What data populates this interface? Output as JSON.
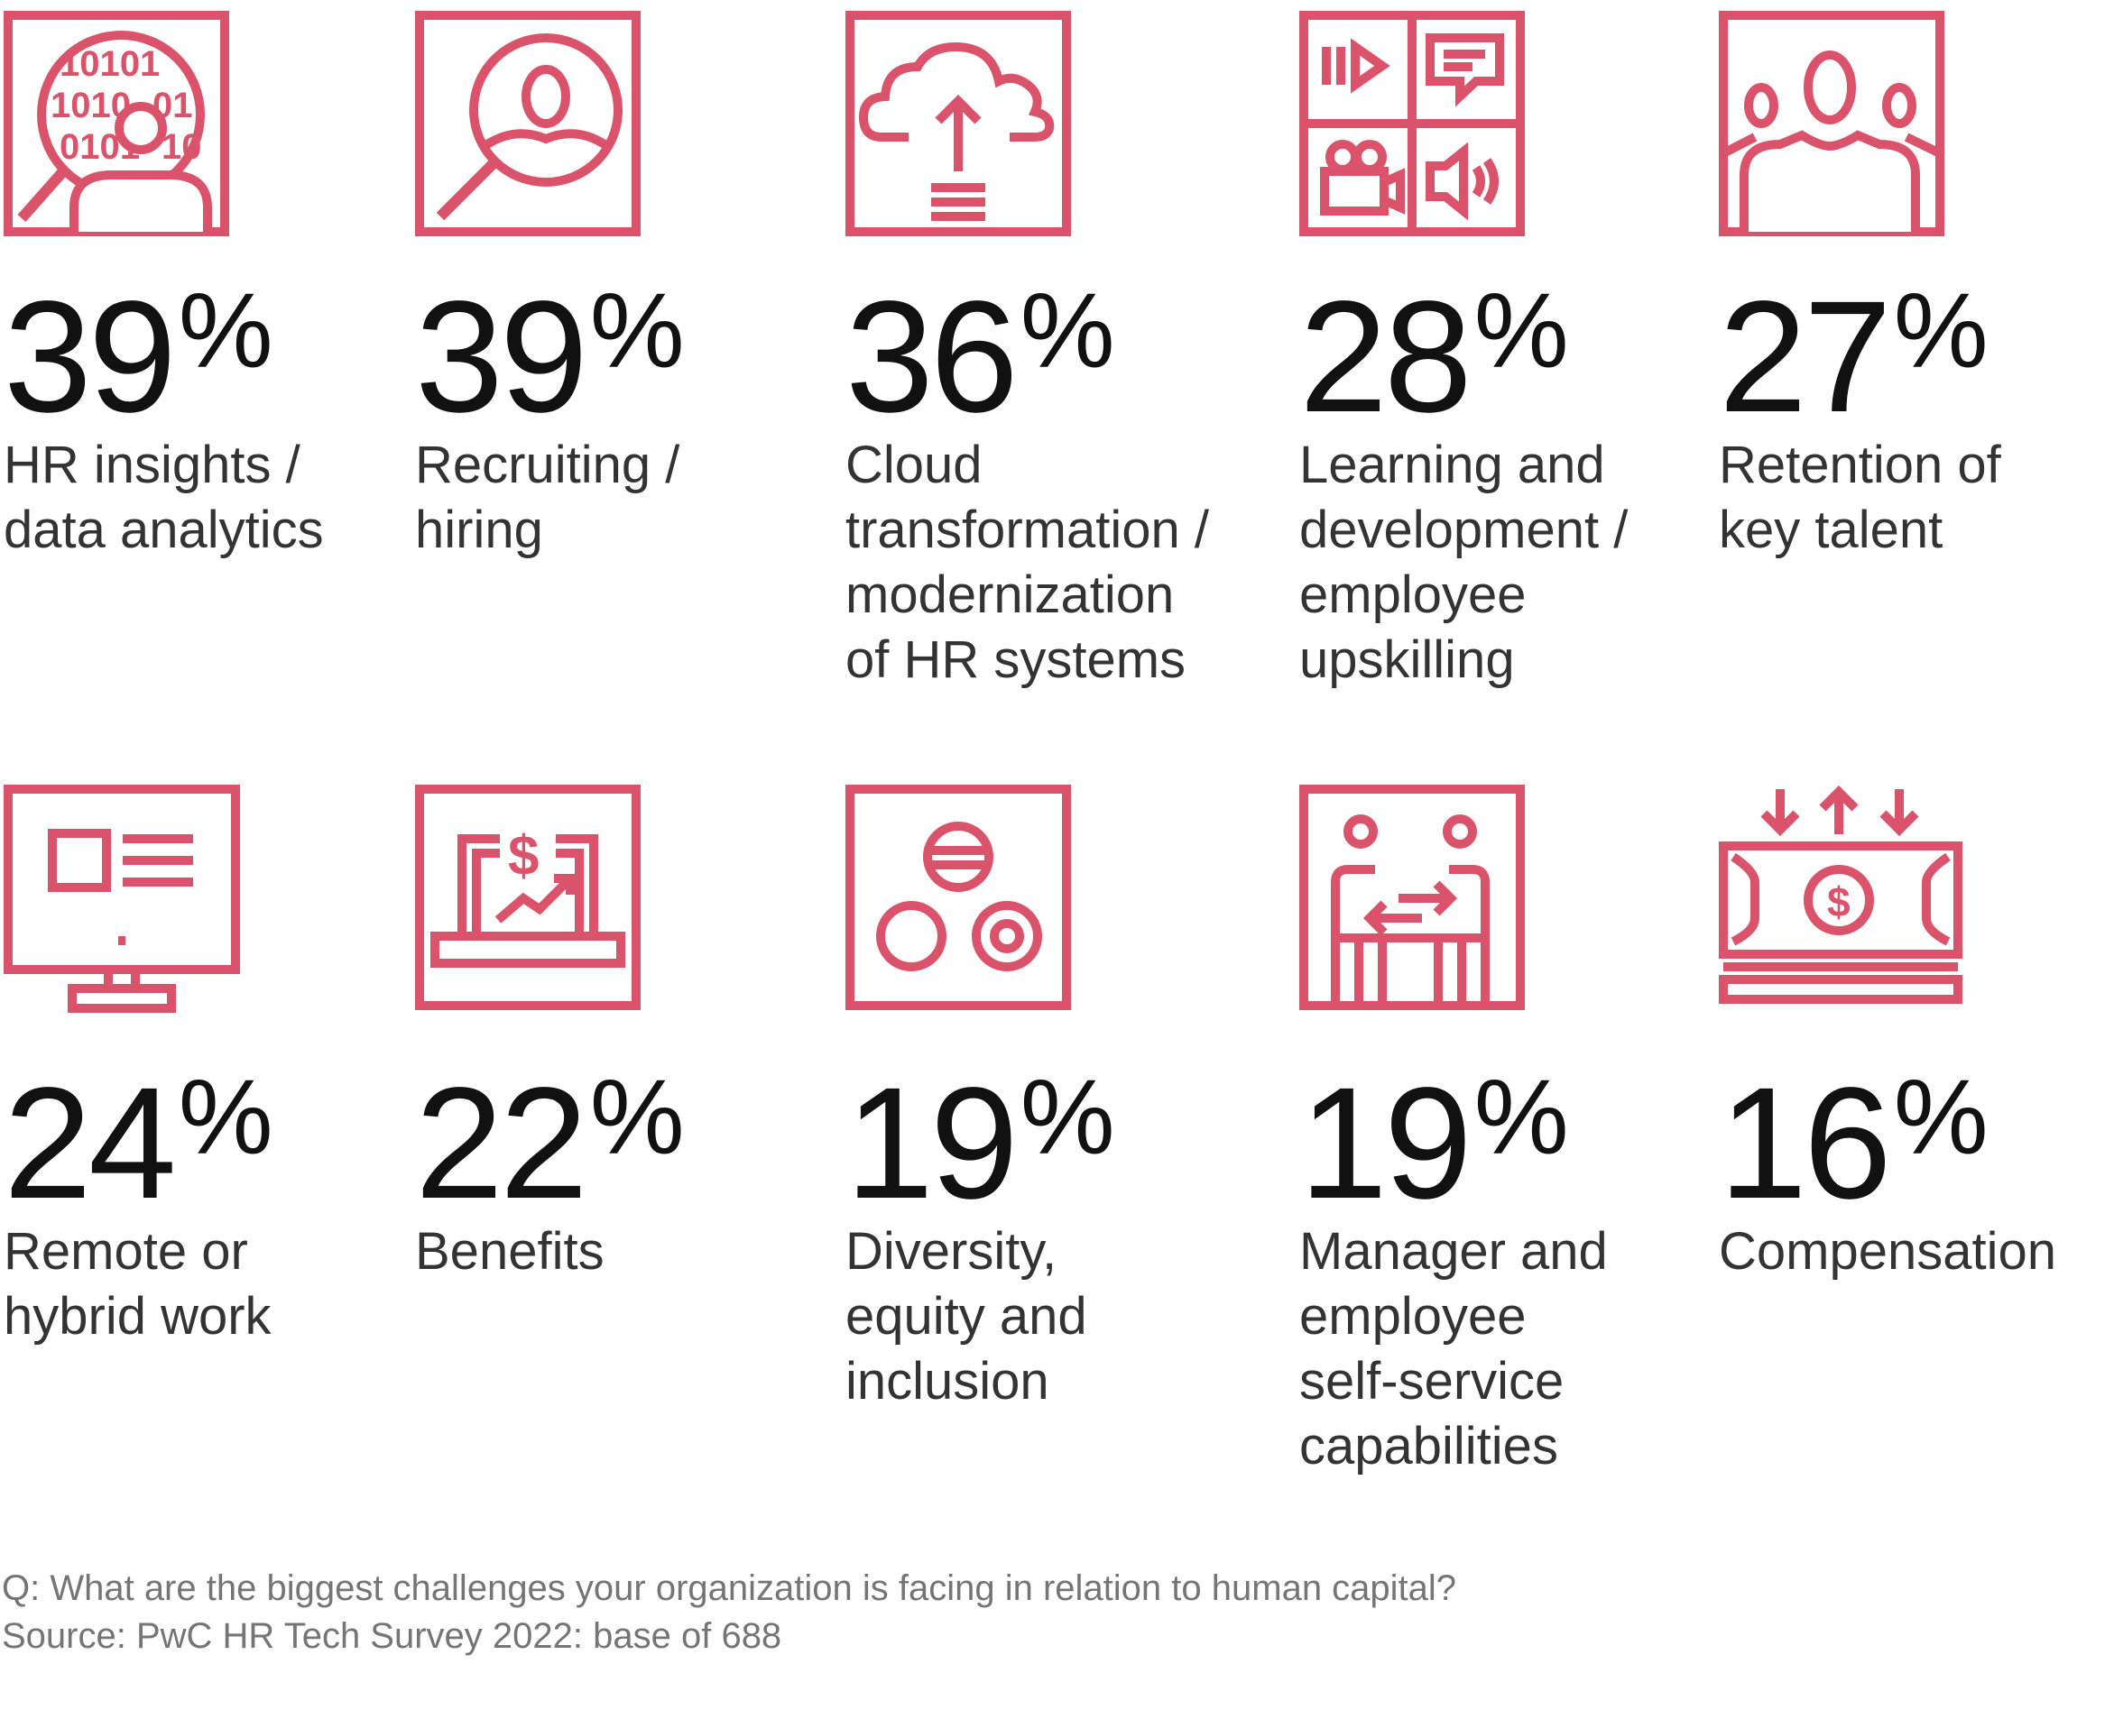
{
  "accent_color": "#db536a",
  "chart_data": {
    "type": "table",
    "items": [
      {
        "value": 39,
        "label": "HR insights /\ndata analytics",
        "icon": "data-analytics-icon"
      },
      {
        "value": 39,
        "label": "Recruiting /\nhiring",
        "icon": "recruiting-search-icon"
      },
      {
        "value": 36,
        "label": "Cloud\ntransformation /\nmodernization\nof HR systems",
        "icon": "cloud-upload-icon"
      },
      {
        "value": 28,
        "label": "Learning and\ndevelopment /\nemployee\nupskilling",
        "icon": "media-learning-icon"
      },
      {
        "value": 27,
        "label": "Retention of\nkey talent",
        "icon": "team-people-icon"
      },
      {
        "value": 24,
        "label": "Remote or\nhybrid work",
        "icon": "desktop-monitor-icon"
      },
      {
        "value": 22,
        "label": "Benefits",
        "icon": "laptop-dollar-icon"
      },
      {
        "value": 19,
        "label": "Diversity,\nequity and\ninclusion",
        "icon": "diversity-circles-icon"
      },
      {
        "value": 19,
        "label": "Manager and\nemployee\nself-service\ncapabilities",
        "icon": "people-exchange-icon"
      },
      {
        "value": 16,
        "label": "Compensation",
        "icon": "banknote-arrows-icon"
      }
    ],
    "value_suffix": "%"
  },
  "footer": {
    "question": "Q: What are the biggest challenges your organization is facing in relation to human capital?",
    "source": "Source: PwC HR Tech Survey 2022: base of 688"
  }
}
